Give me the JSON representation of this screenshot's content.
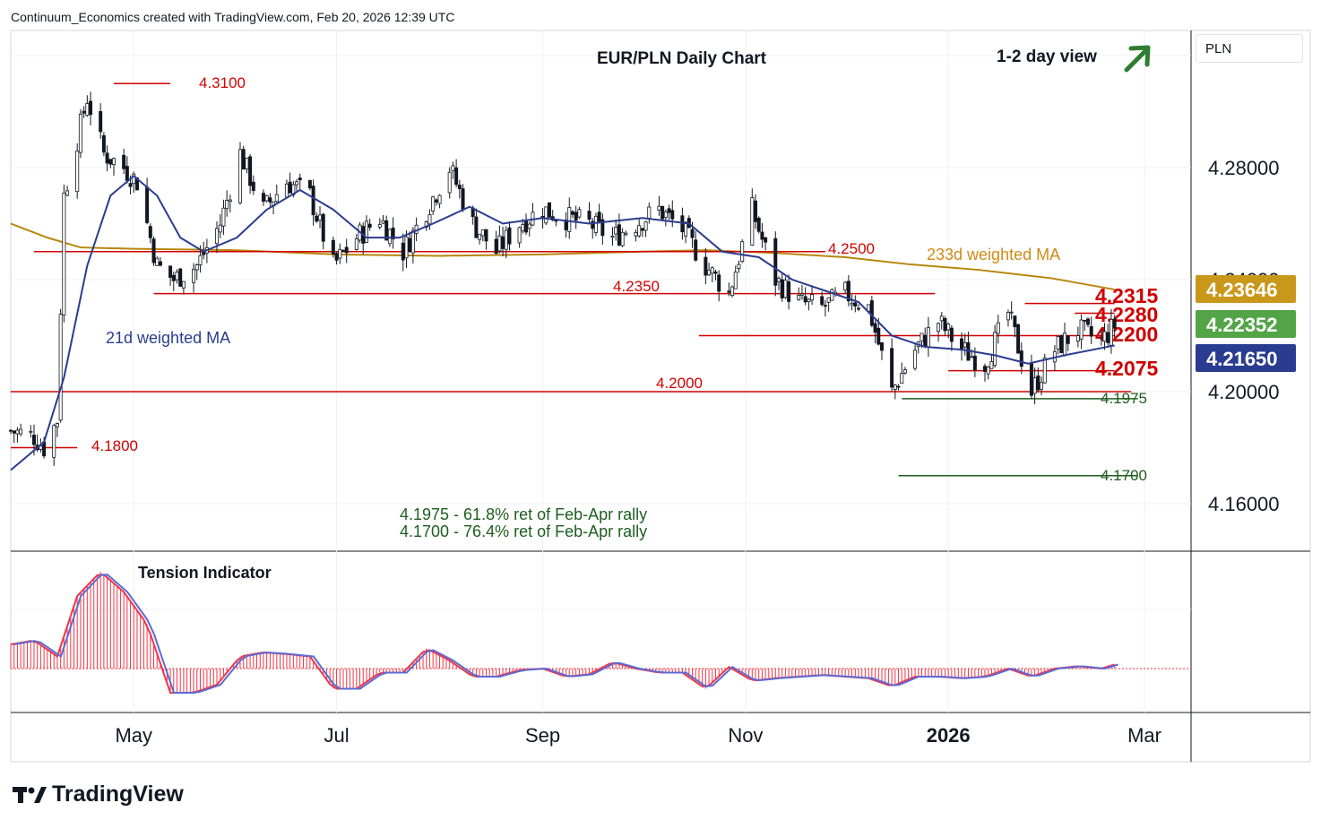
{
  "header": "Continuum_Economics created with TradingView.com, Feb 20, 2026 12:39 UTC",
  "title": "EUR/PLN Daily Chart",
  "view": "1-2 day view",
  "currency": "PLN",
  "brand": "TradingView",
  "colors": {
    "up": "#089981",
    "down": "#f23645",
    "candle": "#131722",
    "ma21": "#2a3c8f",
    "ma233": "#b8860b",
    "resistance": "#d10000",
    "support": "#1e5e1e"
  },
  "icons": {
    "arrow": "arrow-up-right-icon",
    "logo": "tradingview-logo-icon"
  },
  "x_axis": [
    "May",
    "Jul",
    "Sep",
    "Nov",
    "2026",
    "Mar"
  ],
  "y_axis": [
    "4.28000",
    "4.24000",
    "4.20000",
    "4.16000"
  ],
  "price_tags": [
    {
      "label": "4.23646",
      "value": 4.23646,
      "color": "#c9971a",
      "name": "ma233-price-tag"
    },
    {
      "label": "4.22352",
      "value": 4.22352,
      "color": "#52a447",
      "name": "last-price-tag"
    },
    {
      "label": "4.21650",
      "value": 4.2165,
      "color": "#2a3c8f",
      "name": "ma21-price-tag"
    }
  ],
  "levels": [
    {
      "label": "4.3100",
      "value": 4.31,
      "type": "resistance"
    },
    {
      "label": "4.2500",
      "value": 4.25,
      "type": "resistance"
    },
    {
      "label": "4.2350",
      "value": 4.235,
      "type": "resistance"
    },
    {
      "label": "4.2315",
      "value": 4.2315,
      "type": "resistance"
    },
    {
      "label": "4.2280",
      "value": 4.228,
      "type": "resistance"
    },
    {
      "label": "4.2200",
      "value": 4.22,
      "type": "resistance"
    },
    {
      "label": "4.2075",
      "value": 4.2075,
      "type": "resistance"
    },
    {
      "label": "4.2000",
      "value": 4.2,
      "type": "resistance"
    },
    {
      "label": "4.1800",
      "value": 4.18,
      "type": "resistance"
    },
    {
      "label": "4.1975",
      "value": 4.1975,
      "type": "support"
    },
    {
      "label": "4.1700",
      "value": 4.17,
      "type": "support"
    }
  ],
  "annotations": {
    "ma21": "21d weighted MA",
    "ma233": "233d weighted MA",
    "fib1": "4.1975 - 61.8% ret of Feb-Apr rally",
    "fib2": "4.1700 - 76.4% ret of Feb-Apr rally",
    "indicator": "Tension Indicator"
  },
  "chart_data": {
    "type": "candlestick",
    "title": "EUR/PLN Daily Chart",
    "ylim": [
      4.145,
      4.323
    ],
    "x_range": [
      "2025-03-25",
      "2026-03-15"
    ],
    "ma_labels": [
      "21d weighted MA",
      "233d weighted MA"
    ],
    "close_path": [
      [
        "2025-03-25",
        4.186
      ],
      [
        "2025-04-01",
        4.184
      ],
      [
        "2025-04-04",
        4.18
      ],
      [
        "2025-04-08",
        4.19
      ],
      [
        "2025-04-10",
        4.27
      ],
      [
        "2025-04-14",
        4.29
      ],
      [
        "2025-04-17",
        4.305
      ],
      [
        "2025-04-22",
        4.285
      ],
      [
        "2025-04-28",
        4.28
      ],
      [
        "2025-05-02",
        4.275
      ],
      [
        "2025-05-08",
        4.245
      ],
      [
        "2025-05-13",
        4.24
      ],
      [
        "2025-05-20",
        4.245
      ],
      [
        "2025-05-27",
        4.26
      ],
      [
        "2025-06-02",
        4.285
      ],
      [
        "2025-06-09",
        4.265
      ],
      [
        "2025-06-16",
        4.275
      ],
      [
        "2025-06-23",
        4.27
      ],
      [
        "2025-06-30",
        4.245
      ],
      [
        "2025-07-07",
        4.255
      ],
      [
        "2025-07-14",
        4.262
      ],
      [
        "2025-07-21",
        4.25
      ],
      [
        "2025-07-28",
        4.265
      ],
      [
        "2025-08-04",
        4.28
      ],
      [
        "2025-08-11",
        4.26
      ],
      [
        "2025-08-18",
        4.25
      ],
      [
        "2025-08-25",
        4.26
      ],
      [
        "2025-09-01",
        4.265
      ],
      [
        "2025-09-08",
        4.262
      ],
      [
        "2025-09-15",
        4.26
      ],
      [
        "2025-09-22",
        4.255
      ],
      [
        "2025-09-29",
        4.26
      ],
      [
        "2025-10-06",
        4.265
      ],
      [
        "2025-10-13",
        4.258
      ],
      [
        "2025-10-20",
        4.245
      ],
      [
        "2025-10-27",
        4.235
      ],
      [
        "2025-11-03",
        4.265
      ],
      [
        "2025-11-10",
        4.24
      ],
      [
        "2025-11-17",
        4.232
      ],
      [
        "2025-11-24",
        4.23
      ],
      [
        "2025-12-01",
        4.235
      ],
      [
        "2025-12-08",
        4.23
      ],
      [
        "2025-12-15",
        4.2
      ],
      [
        "2025-12-22",
        4.215
      ],
      [
        "2025-12-29",
        4.225
      ],
      [
        "2026-01-05",
        4.215
      ],
      [
        "2026-01-12",
        4.21
      ],
      [
        "2026-01-19",
        4.228
      ],
      [
        "2026-01-26",
        4.2
      ],
      [
        "2026-02-02",
        4.215
      ],
      [
        "2026-02-09",
        4.222
      ],
      [
        "2026-02-16",
        4.218
      ],
      [
        "2026-02-20",
        4.2235
      ]
    ],
    "ma21_path": [
      [
        "2025-03-25",
        4.172
      ],
      [
        "2025-04-04",
        4.182
      ],
      [
        "2025-04-10",
        4.205
      ],
      [
        "2025-04-17",
        4.245
      ],
      [
        "2025-04-24",
        4.27
      ],
      [
        "2025-05-01",
        4.277
      ],
      [
        "2025-05-08",
        4.27
      ],
      [
        "2025-05-15",
        4.255
      ],
      [
        "2025-05-22",
        4.25
      ],
      [
        "2025-06-01",
        4.255
      ],
      [
        "2025-06-10",
        4.265
      ],
      [
        "2025-06-20",
        4.272
      ],
      [
        "2025-06-30",
        4.265
      ],
      [
        "2025-07-10",
        4.255
      ],
      [
        "2025-07-20",
        4.255
      ],
      [
        "2025-07-30",
        4.26
      ],
      [
        "2025-08-10",
        4.266
      ],
      [
        "2025-08-20",
        4.26
      ],
      [
        "2025-09-01",
        4.262
      ],
      [
        "2025-09-15",
        4.26
      ],
      [
        "2025-10-01",
        4.262
      ],
      [
        "2025-10-15",
        4.26
      ],
      [
        "2025-10-25",
        4.25
      ],
      [
        "2025-11-05",
        4.248
      ],
      [
        "2025-11-15",
        4.24
      ],
      [
        "2025-11-25",
        4.236
      ],
      [
        "2025-12-05",
        4.232
      ],
      [
        "2025-12-15",
        4.22
      ],
      [
        "2025-12-25",
        4.216
      ],
      [
        "2026-01-05",
        4.215
      ],
      [
        "2026-01-15",
        4.213
      ],
      [
        "2026-01-25",
        4.21
      ],
      [
        "2026-02-05",
        4.213
      ],
      [
        "2026-02-20",
        4.2165
      ]
    ],
    "ma233_path": [
      [
        "2025-03-25",
        4.26
      ],
      [
        "2025-04-05",
        4.255
      ],
      [
        "2025-04-15",
        4.2515
      ],
      [
        "2025-05-01",
        4.251
      ],
      [
        "2025-06-01",
        4.2505
      ],
      [
        "2025-07-01",
        4.249
      ],
      [
        "2025-08-01",
        4.2485
      ],
      [
        "2025-09-01",
        4.249
      ],
      [
        "2025-10-01",
        4.25
      ],
      [
        "2025-10-20",
        4.2505
      ],
      [
        "2025-11-10",
        4.2495
      ],
      [
        "2025-12-01",
        4.248
      ],
      [
        "2025-12-20",
        4.2455
      ],
      [
        "2026-01-10",
        4.2435
      ],
      [
        "2026-02-01",
        4.2405
      ],
      [
        "2026-02-20",
        4.23646
      ]
    ],
    "tension_indicator": [
      [
        "2025-03-25",
        0.3
      ],
      [
        "2025-04-01",
        0.35
      ],
      [
        "2025-04-08",
        0.15
      ],
      [
        "2025-04-14",
        0.9
      ],
      [
        "2025-04-21",
        1.2
      ],
      [
        "2025-04-28",
        0.95
      ],
      [
        "2025-05-05",
        0.55
      ],
      [
        "2025-05-12",
        -0.3
      ],
      [
        "2025-05-19",
        -0.3
      ],
      [
        "2025-05-26",
        -0.2
      ],
      [
        "2025-06-02",
        0.15
      ],
      [
        "2025-06-09",
        0.2
      ],
      [
        "2025-06-16",
        0.18
      ],
      [
        "2025-06-23",
        0.15
      ],
      [
        "2025-06-30",
        -0.25
      ],
      [
        "2025-07-07",
        -0.25
      ],
      [
        "2025-07-14",
        -0.05
      ],
      [
        "2025-07-21",
        -0.05
      ],
      [
        "2025-07-28",
        0.25
      ],
      [
        "2025-08-04",
        0.1
      ],
      [
        "2025-08-11",
        -0.1
      ],
      [
        "2025-08-18",
        -0.1
      ],
      [
        "2025-08-25",
        -0.02
      ],
      [
        "2025-09-01",
        0.0
      ],
      [
        "2025-09-08",
        -0.1
      ],
      [
        "2025-09-15",
        -0.07
      ],
      [
        "2025-09-22",
        0.08
      ],
      [
        "2025-09-29",
        0.0
      ],
      [
        "2025-10-06",
        -0.05
      ],
      [
        "2025-10-13",
        -0.05
      ],
      [
        "2025-10-20",
        -0.25
      ],
      [
        "2025-10-27",
        0.02
      ],
      [
        "2025-11-03",
        -0.15
      ],
      [
        "2025-11-10",
        -0.12
      ],
      [
        "2025-11-17",
        -0.1
      ],
      [
        "2025-11-24",
        -0.08
      ],
      [
        "2025-12-01",
        -0.1
      ],
      [
        "2025-12-08",
        -0.12
      ],
      [
        "2025-12-15",
        -0.22
      ],
      [
        "2025-12-22",
        -0.1
      ],
      [
        "2025-12-29",
        -0.1
      ],
      [
        "2026-01-05",
        -0.12
      ],
      [
        "2026-01-12",
        -0.1
      ],
      [
        "2026-01-19",
        0.0
      ],
      [
        "2026-01-26",
        -0.1
      ],
      [
        "2026-02-02",
        0.0
      ],
      [
        "2026-02-09",
        0.03
      ],
      [
        "2026-02-16",
        0.0
      ],
      [
        "2026-02-20",
        0.05
      ]
    ]
  }
}
